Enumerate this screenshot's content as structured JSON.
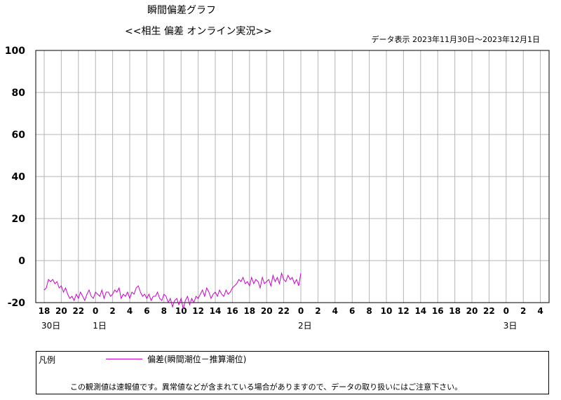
{
  "header": {
    "title": "瞬間偏差グラフ",
    "subtitle": "<<相生 偏差 オンライン実況>>",
    "range_text": "データ表示 2023年11月30日～2023年12月1日"
  },
  "legend": {
    "title": "凡例",
    "series_label": "偏差(瞬間潮位－推算潮位)",
    "notice": "この観測値は速報値です。異常値などが含まれている場合がありますので、データの取り扱いにはご注意下さい。"
  },
  "chart_data": {
    "type": "line",
    "xlabel": "",
    "ylabel": "",
    "ylim": [
      -20,
      100
    ],
    "yticks": [
      100,
      80,
      60,
      40,
      20,
      0,
      -20
    ],
    "x_unit": "hours since 2023-11-30 18:00",
    "xlim": [
      0,
      60
    ],
    "xtick_labels": [
      "18",
      "20",
      "22",
      "0",
      "2",
      "4",
      "6",
      "8",
      "10",
      "12",
      "14",
      "16",
      "18",
      "20",
      "22",
      "0",
      "2",
      "4",
      "6",
      "8",
      "10",
      "12",
      "14",
      "16",
      "18",
      "20",
      "22",
      "0",
      "2",
      "4"
    ],
    "date_labels": [
      {
        "label": "30日",
        "hour": 0
      },
      {
        "label": "1日",
        "hour": 6
      },
      {
        "label": "2日",
        "hour": 30
      },
      {
        "label": "3日",
        "hour": 54
      }
    ],
    "grid": true,
    "line_color": "#cc00cc",
    "series": [
      {
        "name": "偏差(瞬間潮位－推算潮位)",
        "x": [
          0,
          0.25,
          0.5,
          0.75,
          1,
          1.25,
          1.5,
          1.75,
          2,
          2.25,
          2.5,
          2.75,
          3,
          3.25,
          3.5,
          3.75,
          4,
          4.25,
          4.5,
          4.75,
          5,
          5.25,
          5.5,
          5.75,
          6,
          6.25,
          6.5,
          6.75,
          7,
          7.25,
          7.5,
          7.75,
          8,
          8.25,
          8.5,
          8.75,
          9,
          9.25,
          9.5,
          9.75,
          10,
          10.25,
          10.5,
          10.75,
          11,
          11.25,
          11.5,
          11.75,
          12,
          12.25,
          12.5,
          12.75,
          13,
          13.25,
          13.5,
          13.75,
          14,
          14.25,
          14.5,
          14.75,
          15,
          15.25,
          15.5,
          15.75,
          16,
          16.25,
          16.5,
          16.75,
          17,
          17.25,
          17.5,
          17.75,
          18,
          18.25,
          18.5,
          18.75,
          19,
          19.25,
          19.5,
          19.75,
          20,
          20.25,
          20.5,
          20.75,
          21,
          21.25,
          21.5,
          21.75,
          22,
          22.25,
          22.5,
          22.75,
          23,
          23.25,
          23.5,
          23.75,
          24,
          24.25,
          24.5,
          24.75,
          25,
          25.25,
          25.5,
          25.75,
          26,
          26.25,
          26.5,
          26.75,
          27,
          27.25,
          27.5,
          27.75,
          28,
          28.25,
          28.5,
          28.75,
          29,
          29.25,
          29.5,
          29.75,
          30
        ],
        "values": [
          -14,
          -13,
          -9,
          -10,
          -9,
          -11,
          -10,
          -13,
          -12,
          -15,
          -13,
          -16,
          -18,
          -17,
          -19,
          -16,
          -18,
          -15,
          -17,
          -19,
          -16,
          -14,
          -17,
          -18,
          -15,
          -16,
          -17,
          -14,
          -18,
          -15,
          -15,
          -17,
          -16,
          -14,
          -15,
          -13,
          -18,
          -16,
          -17,
          -15,
          -18,
          -15,
          -16,
          -13,
          -12,
          -15,
          -17,
          -16,
          -18,
          -16,
          -19,
          -17,
          -17,
          -15,
          -18,
          -19,
          -16,
          -17,
          -20,
          -18,
          -22,
          -19,
          -18,
          -21,
          -18,
          -23,
          -19,
          -17,
          -21,
          -18,
          -20,
          -17,
          -18,
          -16,
          -14,
          -17,
          -13,
          -15,
          -18,
          -16,
          -15,
          -17,
          -14,
          -16,
          -17,
          -14,
          -16,
          -15,
          -13,
          -12,
          -11,
          -9,
          -10,
          -8,
          -11,
          -10,
          -12,
          -8,
          -11,
          -9,
          -10,
          -13,
          -8,
          -11,
          -10,
          -9,
          -12,
          -7,
          -10,
          -8,
          -11,
          -6,
          -9,
          -10,
          -7,
          -9,
          -8,
          -11,
          -9,
          -12,
          -6
        ]
      }
    ]
  }
}
